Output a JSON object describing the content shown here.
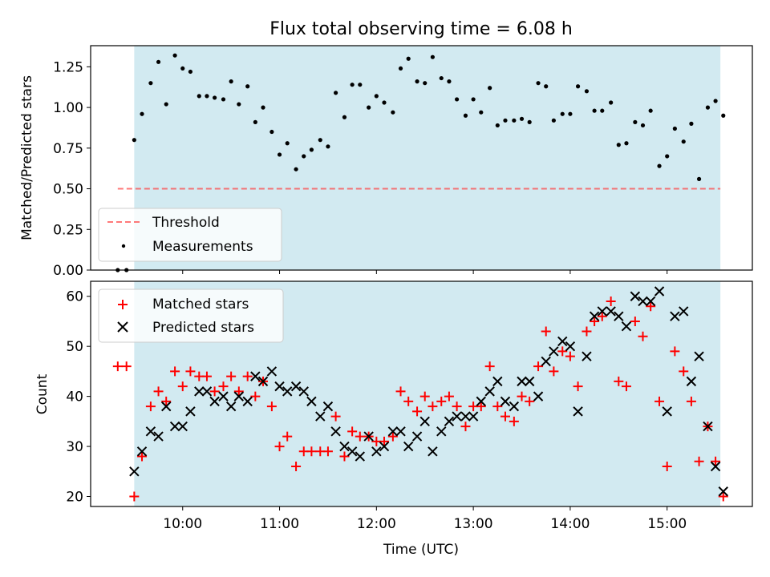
{
  "title": "Flux total observing time = 6.08 h",
  "colors": {
    "shade": "#add8e6",
    "threshold": "#ff4040",
    "measurements": "#000000",
    "matched": "#ff0000",
    "predicted": "#000000"
  },
  "chart_data": [
    {
      "type": "scatter",
      "ylabel": "Matched/Predicted stars",
      "xlabel": "",
      "xlim": [
        9.05,
        15.88
      ],
      "ylim": [
        0,
        1.38
      ],
      "y_ticks": [
        0.0,
        0.25,
        0.5,
        0.75,
        1.0,
        1.25
      ],
      "y_tick_labels": [
        "0.00",
        "0.25",
        "0.50",
        "0.75",
        "1.00",
        "1.25"
      ],
      "x_ticks": [
        10,
        11,
        12,
        13,
        14,
        15
      ],
      "shaded_span": [
        9.5,
        15.55
      ],
      "legend": {
        "position": "lower-left",
        "entries": [
          "Threshold",
          "Measurements"
        ]
      },
      "series": [
        {
          "name": "Threshold",
          "kind": "dashed-line",
          "x": [
            9.33,
            15.55
          ],
          "y": [
            0.5,
            0.5
          ]
        },
        {
          "name": "Measurements",
          "kind": "points",
          "x": [
            9.33,
            9.42,
            9.5,
            9.58,
            9.67,
            9.75,
            9.83,
            9.92,
            10.0,
            10.08,
            10.17,
            10.25,
            10.33,
            10.42,
            10.5,
            10.58,
            10.67,
            10.75,
            10.83,
            10.92,
            11.0,
            11.08,
            11.17,
            11.25,
            11.33,
            11.42,
            11.5,
            11.58,
            11.67,
            11.75,
            11.83,
            11.92,
            12.0,
            12.08,
            12.17,
            12.25,
            12.33,
            12.42,
            12.5,
            12.58,
            12.67,
            12.75,
            12.83,
            12.92,
            13.0,
            13.08,
            13.17,
            13.25,
            13.33,
            13.42,
            13.5,
            13.58,
            13.67,
            13.75,
            13.83,
            13.92,
            14.0,
            14.08,
            14.17,
            14.25,
            14.33,
            14.42,
            14.5,
            14.58,
            14.67,
            14.75,
            14.83,
            14.92,
            15.0,
            15.08,
            15.17,
            15.25,
            15.33,
            15.42,
            15.5,
            15.58
          ],
          "y": [
            0.0,
            0.0,
            0.8,
            0.96,
            1.15,
            1.28,
            1.02,
            1.32,
            1.24,
            1.22,
            1.07,
            1.07,
            1.06,
            1.05,
            1.16,
            1.02,
            1.13,
            0.91,
            1.0,
            0.85,
            0.71,
            0.78,
            0.62,
            0.7,
            0.74,
            0.8,
            0.76,
            1.09,
            0.94,
            1.14,
            1.14,
            1.0,
            1.07,
            1.03,
            0.97,
            1.24,
            1.3,
            1.16,
            1.15,
            1.31,
            1.18,
            1.16,
            1.05,
            0.95,
            1.05,
            0.97,
            1.12,
            0.89,
            0.92,
            0.92,
            0.93,
            0.91,
            1.15,
            1.13,
            0.92,
            0.96,
            0.96,
            1.13,
            1.1,
            0.98,
            0.98,
            1.03,
            0.77,
            0.78,
            0.91,
            0.89,
            0.98,
            0.64,
            0.7,
            0.87,
            0.79,
            0.9,
            0.56,
            1.0,
            1.04,
            0.95
          ]
        }
      ]
    },
    {
      "type": "scatter",
      "ylabel": "Count",
      "xlabel": "Time (UTC)",
      "xlim": [
        9.05,
        15.88
      ],
      "ylim": [
        18,
        63
      ],
      "y_ticks": [
        20,
        30,
        40,
        50,
        60
      ],
      "y_tick_labels": [
        "20",
        "30",
        "40",
        "50",
        "60"
      ],
      "x_ticks": [
        10,
        11,
        12,
        13,
        14,
        15
      ],
      "x_tick_labels": [
        "10:00",
        "11:00",
        "12:00",
        "13:00",
        "14:00",
        "15:00"
      ],
      "shaded_span": [
        9.5,
        15.55
      ],
      "legend": {
        "position": "upper-left",
        "entries": [
          "Matched stars",
          "Predicted stars"
        ]
      },
      "series": [
        {
          "name": "Matched stars",
          "marker": "plus",
          "x": [
            9.33,
            9.42,
            9.5,
            9.58,
            9.67,
            9.75,
            9.83,
            9.92,
            10.0,
            10.08,
            10.17,
            10.25,
            10.33,
            10.42,
            10.5,
            10.58,
            10.67,
            10.75,
            10.83,
            10.92,
            11.0,
            11.08,
            11.17,
            11.25,
            11.33,
            11.42,
            11.5,
            11.58,
            11.67,
            11.75,
            11.83,
            11.92,
            12.0,
            12.08,
            12.17,
            12.25,
            12.33,
            12.42,
            12.5,
            12.58,
            12.67,
            12.75,
            12.83,
            12.92,
            13.0,
            13.08,
            13.17,
            13.25,
            13.33,
            13.42,
            13.5,
            13.58,
            13.67,
            13.75,
            13.83,
            13.92,
            14.0,
            14.08,
            14.17,
            14.25,
            14.33,
            14.42,
            14.5,
            14.58,
            14.67,
            14.75,
            14.83,
            14.92,
            15.0,
            15.08,
            15.17,
            15.25,
            15.33,
            15.42,
            15.5,
            15.58
          ],
          "y": [
            46,
            46,
            20,
            28,
            38,
            41,
            39,
            45,
            42,
            45,
            44,
            44,
            41,
            42,
            44,
            41,
            44,
            40,
            43,
            38,
            30,
            32,
            26,
            29,
            29,
            29,
            29,
            36,
            28,
            33,
            32,
            32,
            31,
            31,
            32,
            41,
            39,
            37,
            40,
            38,
            39,
            40,
            38,
            34,
            38,
            38,
            46,
            38,
            36,
            35,
            40,
            39,
            46,
            53,
            45,
            49,
            48,
            42,
            53,
            55,
            56,
            59,
            43,
            42,
            55,
            52,
            58,
            39,
            26,
            49,
            45,
            39,
            27,
            34,
            27,
            20
          ]
        },
        {
          "name": "Predicted stars",
          "marker": "x",
          "x": [
            9.5,
            9.58,
            9.67,
            9.75,
            9.83,
            9.92,
            10.0,
            10.08,
            10.17,
            10.25,
            10.33,
            10.42,
            10.5,
            10.58,
            10.67,
            10.75,
            10.83,
            10.92,
            11.0,
            11.08,
            11.17,
            11.25,
            11.33,
            11.42,
            11.5,
            11.58,
            11.67,
            11.75,
            11.83,
            11.92,
            12.0,
            12.08,
            12.17,
            12.25,
            12.33,
            12.42,
            12.5,
            12.58,
            12.67,
            12.75,
            12.83,
            12.92,
            13.0,
            13.08,
            13.17,
            13.25,
            13.33,
            13.42,
            13.5,
            13.58,
            13.67,
            13.75,
            13.83,
            13.92,
            14.0,
            14.08,
            14.17,
            14.25,
            14.33,
            14.42,
            14.5,
            14.58,
            14.67,
            14.75,
            14.83,
            14.92,
            15.0,
            15.08,
            15.17,
            15.25,
            15.33,
            15.42,
            15.5,
            15.58
          ],
          "y": [
            25,
            29,
            33,
            32,
            38,
            34,
            34,
            37,
            41,
            41,
            39,
            40,
            38,
            40,
            39,
            44,
            43,
            45,
            42,
            41,
            42,
            41,
            39,
            36,
            38,
            33,
            30,
            29,
            28,
            32,
            29,
            30,
            33,
            33,
            30,
            32,
            35,
            29,
            33,
            35,
            36,
            36,
            36,
            39,
            41,
            43,
            39,
            38,
            43,
            43,
            40,
            47,
            49,
            51,
            50,
            37,
            48,
            56,
            57,
            57,
            56,
            54,
            60,
            59,
            59,
            61,
            37,
            56,
            57,
            43,
            48,
            34,
            26,
            21
          ]
        }
      ]
    }
  ]
}
